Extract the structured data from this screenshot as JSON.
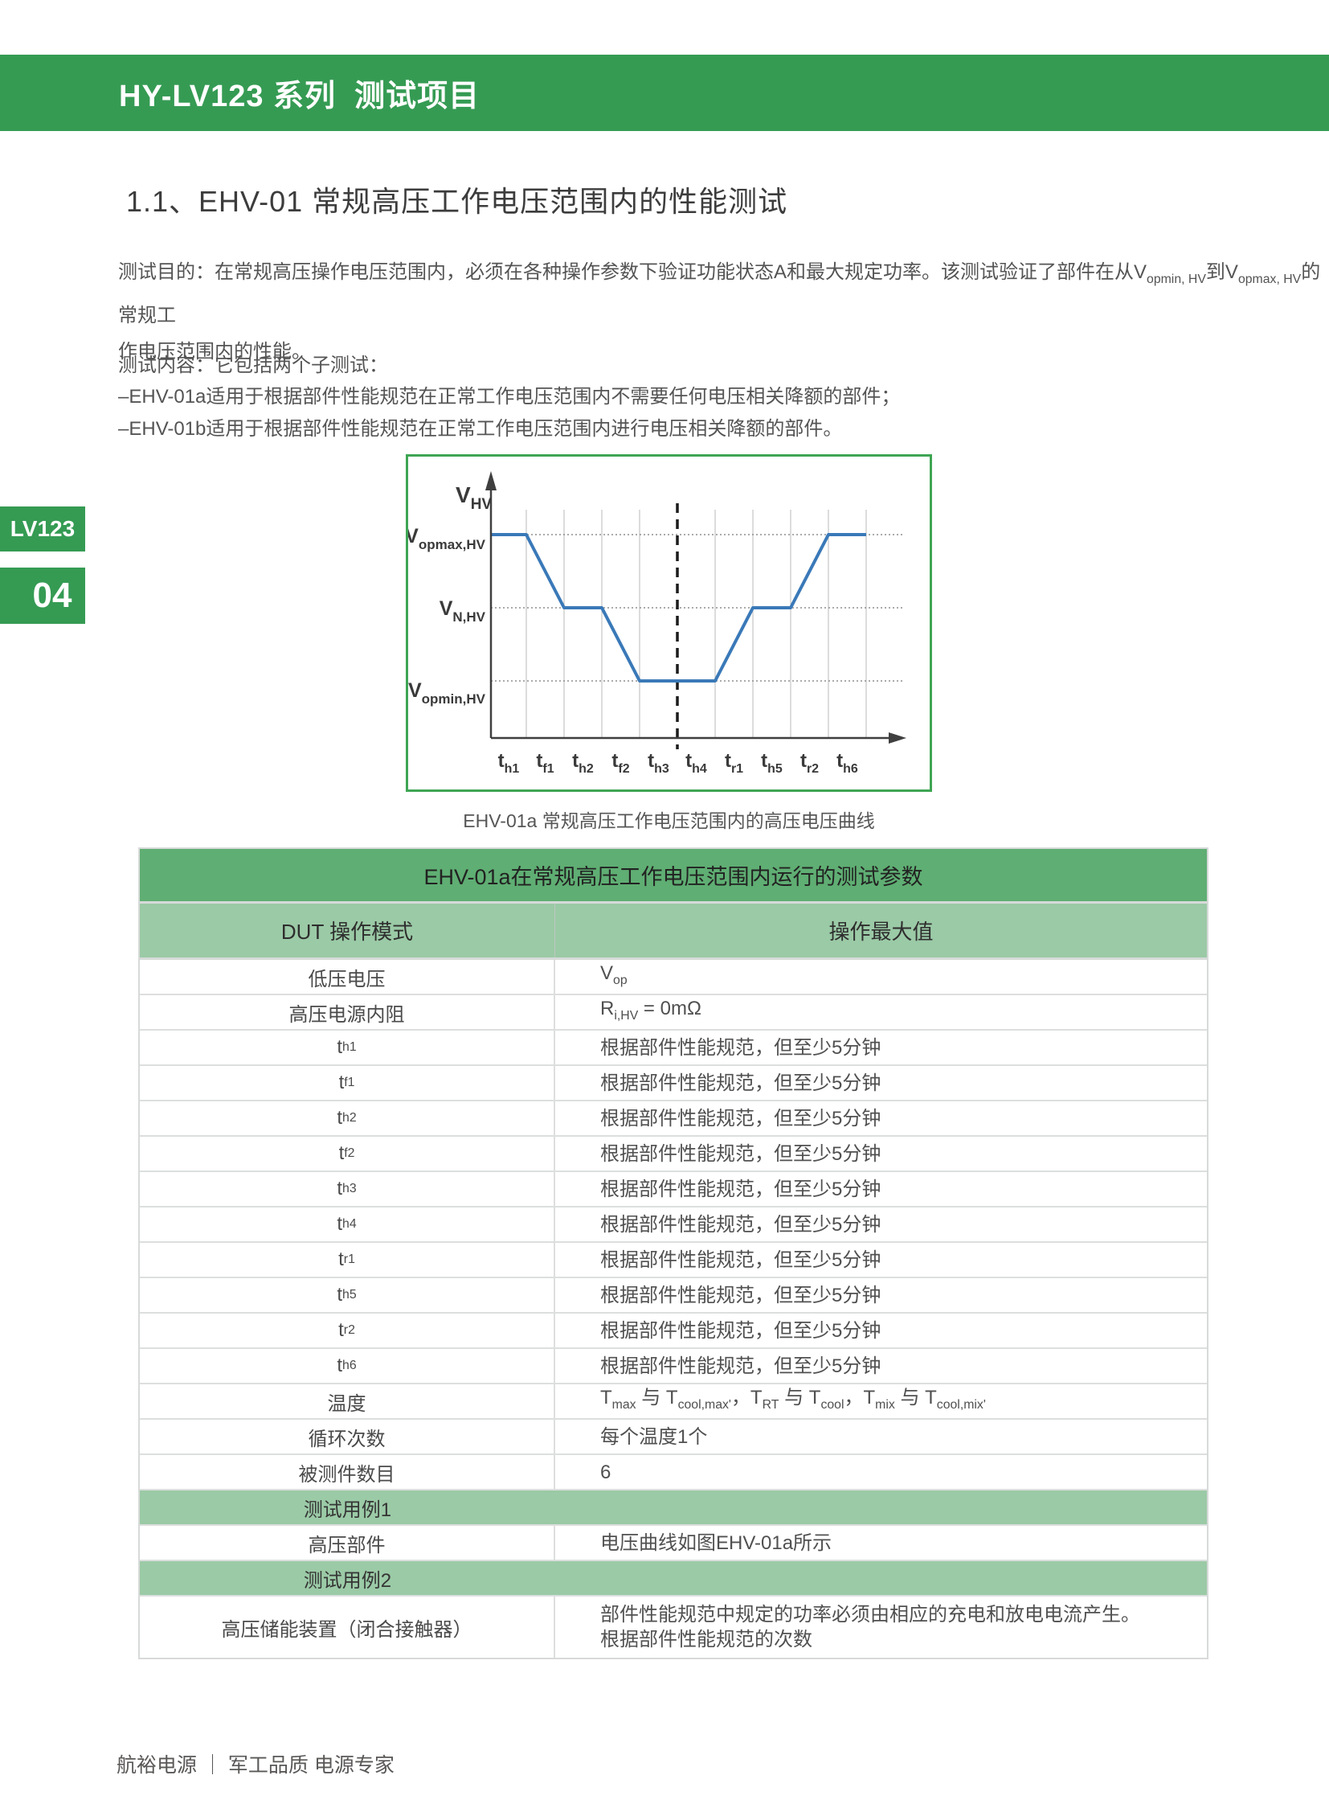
{
  "page": {
    "banner_title": "HY-LV123 系列  测试项目",
    "footer": "航裕电源 ｜ 军工品质 电源专家"
  },
  "sidebar": {
    "series_tab": "LV123",
    "page_number": "04"
  },
  "section": {
    "title": "1.1、EHV-01 常规高压工作电压范围内的性能测试",
    "purpose": "测试目的：在常规高压操作电压范围内，必须在各种操作参数下验证功能状态A和最大规定功率。该测试验证了部件在从V_{opmin, HV}到V_{opmax, HV}的常规工\n作电压范围内的性能。",
    "content_intro": "测试内容：它包括两个子测试：",
    "content_items": [
      "–EHV-01a适用于根据部件性能规范在正常工作电压范围内不需要任何电压相关降额的部件；",
      "–EHV-01b适用于根据部件性能规范在正常工作电压范围内进行电压相关降额的部件。"
    ]
  },
  "chart_data": {
    "type": "line",
    "caption": "EHV-01a 常规高压工作电压范围内的高压电压曲线",
    "y_axis_label": {
      "base": "V",
      "sub": "HV"
    },
    "levels": [
      {
        "key": "opmax",
        "base": "V",
        "sub": "opmax,HV"
      },
      {
        "key": "N",
        "base": "V",
        "sub": "N,HV"
      },
      {
        "key": "opmin",
        "base": "V",
        "sub": "opmin,HV"
      }
    ],
    "segments": [
      {
        "base": "t",
        "sub": "h1"
      },
      {
        "base": "t",
        "sub": "f1"
      },
      {
        "base": "t",
        "sub": "h2"
      },
      {
        "base": "t",
        "sub": "f2"
      },
      {
        "base": "t",
        "sub": "h3"
      },
      {
        "base": "t",
        "sub": "h4"
      },
      {
        "base": "t",
        "sub": "r1"
      },
      {
        "base": "t",
        "sub": "h5"
      },
      {
        "base": "t",
        "sub": "r2"
      },
      {
        "base": "t",
        "sub": "h6"
      }
    ],
    "boundary_levels": [
      "opmax",
      "opmax",
      "N",
      "N",
      "opmin",
      "opmin",
      "opmin",
      "N",
      "N",
      "opmax",
      "opmax"
    ],
    "dashed_boundary_index": 5,
    "curve_color": "#3a79b8",
    "border_color": "#3fa554",
    "grid": true,
    "legend": false
  },
  "table": {
    "title": "EHV-01a在常规高压工作电压范围内运行的测试参数",
    "columns": [
      "DUT 操作模式",
      "操作最大值"
    ],
    "rows": [
      {
        "type": "data",
        "left": "低压电压",
        "right": "V_{op}"
      },
      {
        "type": "data",
        "left": "高压电源内阻",
        "right": "R_{i,HV} = 0mΩ"
      },
      {
        "type": "data",
        "left": "t_{h1}",
        "right": "根据部件性能规范，但至少5分钟"
      },
      {
        "type": "data",
        "left": "t_{f1}",
        "right": "根据部件性能规范，但至少5分钟"
      },
      {
        "type": "data",
        "left": "t_{h2}",
        "right": "根据部件性能规范，但至少5分钟"
      },
      {
        "type": "data",
        "left": "t_{f2}",
        "right": "根据部件性能规范，但至少5分钟"
      },
      {
        "type": "data",
        "left": "t_{h3}",
        "right": "根据部件性能规范，但至少5分钟"
      },
      {
        "type": "data",
        "left": "t_{h4}",
        "right": "根据部件性能规范，但至少5分钟"
      },
      {
        "type": "data",
        "left": "t_{r1}",
        "right": "根据部件性能规范，但至少5分钟"
      },
      {
        "type": "data",
        "left": "t_{h5}",
        "right": "根据部件性能规范，但至少5分钟"
      },
      {
        "type": "data",
        "left": "t_{r2}",
        "right": "根据部件性能规范，但至少5分钟"
      },
      {
        "type": "data",
        "left": "t_{h6}",
        "right": "根据部件性能规范，但至少5分钟"
      },
      {
        "type": "data",
        "left": "温度",
        "right": "T_{max} 与 T_{cool,max'}，T_{RT} 与 T_{cool}，T_{mix} 与 T_{cool,mix'}"
      },
      {
        "type": "data",
        "left": "循环次数",
        "right": "每个温度1个"
      },
      {
        "type": "data",
        "left": "被测件数目",
        "right": "6"
      },
      {
        "type": "subheader",
        "left": "测试用例1"
      },
      {
        "type": "data",
        "left": "高压部件",
        "right": "电压曲线如图EHV-01a所示"
      },
      {
        "type": "subheader",
        "left": "测试用例2"
      },
      {
        "type": "data",
        "tall": true,
        "left": "高压储能装置（闭合接触器）",
        "right": "部件性能规范中规定的功率必须由相应的充电和放电电流产生。\n根据部件性能规范的次数"
      }
    ],
    "colors": {
      "title_bg": "#5fae73",
      "header_bg": "#9bcaa6",
      "banner_green": "#359b53",
      "border": "#d7dad9"
    }
  }
}
